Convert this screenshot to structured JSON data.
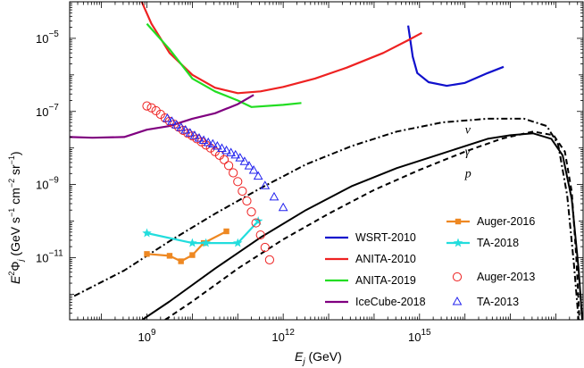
{
  "chart_data": {
    "type": "line",
    "xlabel": {
      "main": "E",
      "sub": "j",
      "unit": " (GeV)"
    },
    "ylabel": {
      "lead": "E",
      "sup1": "2",
      "phi": "Φ",
      "sub": "j",
      "unit": " (GeV s",
      "sup2": "−1",
      "mid1": " cm",
      "sup3": "−2",
      "mid2": " sr",
      "sup4": "−1",
      "close": ")"
    },
    "x_scale": "log10",
    "y_scale": "log10",
    "xlim_log10": [
      7.3,
      18.6
    ],
    "ylim_log10": [
      -12.7,
      -4.0
    ],
    "x_ticks": [
      {
        "exp": 9,
        "base": "10",
        "label": "9"
      },
      {
        "exp": 12,
        "base": "10",
        "label": "12"
      },
      {
        "exp": 15,
        "base": "10",
        "label": "15"
      }
    ],
    "y_ticks": [
      {
        "exp": -5,
        "base": "10",
        "label": "−5"
      },
      {
        "exp": -7,
        "base": "10",
        "label": "−7"
      },
      {
        "exp": -9,
        "base": "10",
        "label": "−9"
      },
      {
        "exp": -11,
        "base": "10",
        "label": "−11"
      }
    ],
    "annotations": [
      {
        "text": "ν",
        "x": 16.0,
        "y": -7.6
      },
      {
        "text": "γ",
        "x": 16.0,
        "y": -8.2
      },
      {
        "text": "p",
        "x": 16.0,
        "y": -8.8
      }
    ],
    "series": [
      {
        "name": "WSRT-2010",
        "color": "#1010cc",
        "style": "solid",
        "kind": "line",
        "points": [
          [
            14.75,
            -4.65
          ],
          [
            14.85,
            -5.5
          ],
          [
            14.95,
            -5.95
          ],
          [
            15.2,
            -6.2
          ],
          [
            15.6,
            -6.3
          ],
          [
            16.0,
            -6.22
          ],
          [
            16.5,
            -5.95
          ],
          [
            16.85,
            -5.78
          ]
        ]
      },
      {
        "name": "ANITA-2010",
        "color": "#ee2222",
        "style": "solid",
        "kind": "line",
        "points": [
          [
            8.85,
            -3.9
          ],
          [
            9.1,
            -4.6
          ],
          [
            9.5,
            -5.4
          ],
          [
            10.0,
            -6.0
          ],
          [
            10.5,
            -6.35
          ],
          [
            11.0,
            -6.5
          ],
          [
            11.5,
            -6.45
          ],
          [
            12.0,
            -6.33
          ],
          [
            12.7,
            -6.1
          ],
          [
            13.4,
            -5.8
          ],
          [
            14.2,
            -5.4
          ],
          [
            14.75,
            -5.05
          ],
          [
            15.05,
            -4.85
          ]
        ]
      },
      {
        "name": "ANITA-2019",
        "color": "#22dd22",
        "style": "solid",
        "kind": "line",
        "points": [
          [
            9.0,
            -4.6
          ],
          [
            9.5,
            -5.3
          ],
          [
            10.0,
            -6.1
          ],
          [
            10.5,
            -6.45
          ],
          [
            11.0,
            -6.7
          ],
          [
            11.3,
            -6.88
          ],
          [
            12.0,
            -6.82
          ],
          [
            12.4,
            -6.77
          ]
        ]
      },
      {
        "name": "IceCube-2018",
        "color": "#800080",
        "style": "solid",
        "kind": "line",
        "points": [
          [
            7.3,
            -7.7
          ],
          [
            7.8,
            -7.72
          ],
          [
            8.5,
            -7.7
          ],
          [
            9.0,
            -7.5
          ],
          [
            9.5,
            -7.4
          ],
          [
            10.0,
            -7.2
          ],
          [
            10.5,
            -7.05
          ],
          [
            11.0,
            -6.8
          ],
          [
            11.35,
            -6.55
          ]
        ]
      },
      {
        "name": "ν",
        "color": "#000000",
        "style": "dashdot",
        "kind": "line",
        "points": [
          [
            7.4,
            -12.05
          ],
          [
            8.5,
            -11.35
          ],
          [
            9.5,
            -10.55
          ],
          [
            10.5,
            -9.8
          ],
          [
            11.5,
            -9.1
          ],
          [
            12.5,
            -8.45
          ],
          [
            13.5,
            -7.95
          ],
          [
            14.5,
            -7.55
          ],
          [
            15.5,
            -7.3
          ],
          [
            16.5,
            -7.2
          ],
          [
            17.3,
            -7.2
          ],
          [
            17.8,
            -7.4
          ],
          [
            18.05,
            -7.9
          ],
          [
            18.25,
            -9.3
          ],
          [
            18.4,
            -11.2
          ],
          [
            18.5,
            -12.7
          ]
        ]
      },
      {
        "name": "γ",
        "color": "#000000",
        "style": "solid",
        "kind": "line",
        "points": [
          [
            8.9,
            -12.7
          ],
          [
            9.5,
            -12.2
          ],
          [
            10.5,
            -11.3
          ],
          [
            11.5,
            -10.45
          ],
          [
            12.5,
            -9.7
          ],
          [
            13.5,
            -9.05
          ],
          [
            14.5,
            -8.55
          ],
          [
            15.5,
            -8.15
          ],
          [
            16.5,
            -7.75
          ],
          [
            17.0,
            -7.65
          ],
          [
            17.5,
            -7.6
          ],
          [
            17.9,
            -7.75
          ],
          [
            18.15,
            -8.2
          ],
          [
            18.35,
            -9.4
          ],
          [
            18.5,
            -11.3
          ],
          [
            18.58,
            -12.7
          ]
        ]
      },
      {
        "name": "p",
        "color": "#000000",
        "style": "dashed",
        "kind": "line",
        "points": [
          [
            9.4,
            -12.7
          ],
          [
            10.0,
            -12.2
          ],
          [
            11.0,
            -11.3
          ],
          [
            12.0,
            -10.5
          ],
          [
            13.0,
            -9.8
          ],
          [
            14.0,
            -9.15
          ],
          [
            15.0,
            -8.6
          ],
          [
            16.0,
            -8.1
          ],
          [
            16.8,
            -7.75
          ],
          [
            17.5,
            -7.55
          ],
          [
            17.95,
            -7.65
          ],
          [
            18.2,
            -8.1
          ],
          [
            18.35,
            -9.2
          ],
          [
            18.45,
            -11.0
          ],
          [
            18.52,
            -12.7
          ]
        ]
      },
      {
        "name": "Auger-2016",
        "color": "#ee8822",
        "style": "solid",
        "kind": "line-square",
        "points": [
          [
            9.0,
            -10.9
          ],
          [
            9.5,
            -10.95
          ],
          [
            9.75,
            -11.1
          ],
          [
            10.0,
            -10.93
          ],
          [
            10.25,
            -10.6
          ],
          [
            10.75,
            -10.28
          ]
        ]
      },
      {
        "name": "TA-2018",
        "color": "#22dddd",
        "style": "solid",
        "kind": "line-star",
        "points": [
          [
            9.0,
            -10.33
          ],
          [
            10.0,
            -10.6
          ],
          [
            10.3,
            -10.6
          ],
          [
            11.0,
            -10.6
          ],
          [
            11.45,
            -10.0
          ]
        ]
      },
      {
        "name": "Auger-2013",
        "color": "#ee2222",
        "kind": "circle",
        "points": [
          [
            9.0,
            -6.85
          ],
          [
            9.1,
            -6.9
          ],
          [
            9.2,
            -6.98
          ],
          [
            9.3,
            -7.08
          ],
          [
            9.4,
            -7.18
          ],
          [
            9.5,
            -7.27
          ],
          [
            9.6,
            -7.35
          ],
          [
            9.7,
            -7.43
          ],
          [
            9.8,
            -7.52
          ],
          [
            9.9,
            -7.6
          ],
          [
            10.0,
            -7.67
          ],
          [
            10.1,
            -7.75
          ],
          [
            10.2,
            -7.83
          ],
          [
            10.3,
            -7.92
          ],
          [
            10.4,
            -8.0
          ],
          [
            10.5,
            -8.1
          ],
          [
            10.6,
            -8.2
          ],
          [
            10.7,
            -8.32
          ],
          [
            10.8,
            -8.48
          ],
          [
            10.9,
            -8.68
          ],
          [
            11.0,
            -8.92
          ],
          [
            11.1,
            -9.18
          ],
          [
            11.2,
            -9.45
          ],
          [
            11.3,
            -9.75
          ],
          [
            11.4,
            -10.05
          ],
          [
            11.5,
            -10.38
          ],
          [
            11.6,
            -10.72
          ],
          [
            11.7,
            -11.06
          ]
        ]
      },
      {
        "name": "TA-2013",
        "color": "#2222ee",
        "kind": "triangle",
        "points": [
          [
            9.45,
            -7.2
          ],
          [
            9.55,
            -7.28
          ],
          [
            9.65,
            -7.38
          ],
          [
            9.75,
            -7.45
          ],
          [
            9.85,
            -7.52
          ],
          [
            9.95,
            -7.6
          ],
          [
            10.05,
            -7.67
          ],
          [
            10.15,
            -7.74
          ],
          [
            10.25,
            -7.8
          ],
          [
            10.35,
            -7.86
          ],
          [
            10.45,
            -7.9
          ],
          [
            10.55,
            -7.96
          ],
          [
            10.65,
            -8.02
          ],
          [
            10.75,
            -8.08
          ],
          [
            10.85,
            -8.14
          ],
          [
            10.95,
            -8.2
          ],
          [
            11.05,
            -8.28
          ],
          [
            11.15,
            -8.38
          ],
          [
            11.25,
            -8.5
          ],
          [
            11.35,
            -8.62
          ],
          [
            11.45,
            -8.78
          ],
          [
            11.6,
            -9.04
          ],
          [
            11.8,
            -9.35
          ],
          [
            12.0,
            -9.64
          ]
        ]
      }
    ],
    "legend": {
      "placement": "bottom-right",
      "columns": [
        [
          "WSRT-2010",
          "ANITA-2010",
          "ANITA-2019",
          "IceCube-2018"
        ],
        [
          "Auger-2016",
          "TA-2018",
          "Auger-2013",
          "TA-2013"
        ]
      ]
    }
  }
}
